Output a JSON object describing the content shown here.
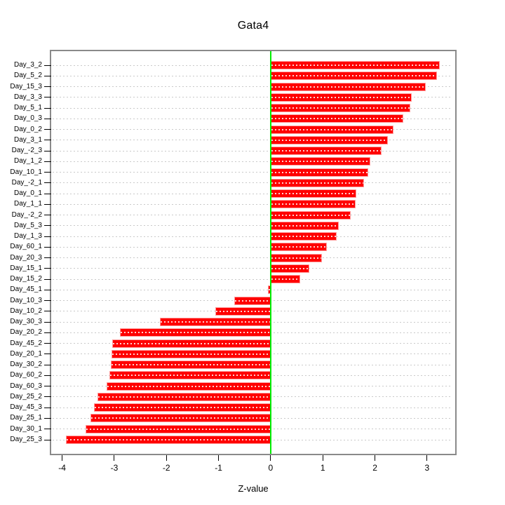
{
  "chart_data": {
    "type": "bar",
    "orientation": "horizontal",
    "title": "Gata4",
    "xlabel": "Z-value",
    "ylabel": "",
    "categories": [
      "Day_3_2",
      "Day_5_2",
      "Day_15_3",
      "Day_3_3",
      "Day_5_1",
      "Day_0_3",
      "Day_0_2",
      "Day_3_1",
      "Day_-2_3",
      "Day_1_2",
      "Day_10_1",
      "Day_-2_1",
      "Day_0_1",
      "Day_1_1",
      "Day_-2_2",
      "Day_5_3",
      "Day_1_3",
      "Day_60_1",
      "Day_20_3",
      "Day_15_1",
      "Day_15_2",
      "Day_45_1",
      "Day_10_3",
      "Day_10_2",
      "Day_30_3",
      "Day_20_2",
      "Day_45_2",
      "Day_20_1",
      "Day_30_2",
      "Day_60_2",
      "Day_60_3",
      "Day_25_2",
      "Day_45_3",
      "Day_25_1",
      "Day_30_1",
      "Day_25_3"
    ],
    "values": [
      3.24,
      3.19,
      2.97,
      2.7,
      2.68,
      2.54,
      2.35,
      2.25,
      2.13,
      1.91,
      1.87,
      1.79,
      1.64,
      1.63,
      1.53,
      1.31,
      1.26,
      1.08,
      0.99,
      0.74,
      0.56,
      -0.05,
      -0.7,
      -1.06,
      -2.13,
      -2.89,
      -3.04,
      -3.05,
      -3.06,
      -3.09,
      -3.15,
      -3.32,
      -3.39,
      -3.46,
      -3.55,
      -3.93
    ],
    "xlim": [
      -4.21,
      3.54
    ],
    "xticks": [
      -4,
      -3,
      -2,
      -1,
      0,
      1,
      2,
      3
    ],
    "zero_line_at": 0,
    "grid": true,
    "legend_position": "none",
    "colors": {
      "bar_fill": "#ff0000",
      "bar_edge": "#ff9e9e",
      "grid_line": "#c9c9c9",
      "zero_line": "#00ee00",
      "box_border": "#8a8a8a",
      "text": "#000000"
    }
  }
}
